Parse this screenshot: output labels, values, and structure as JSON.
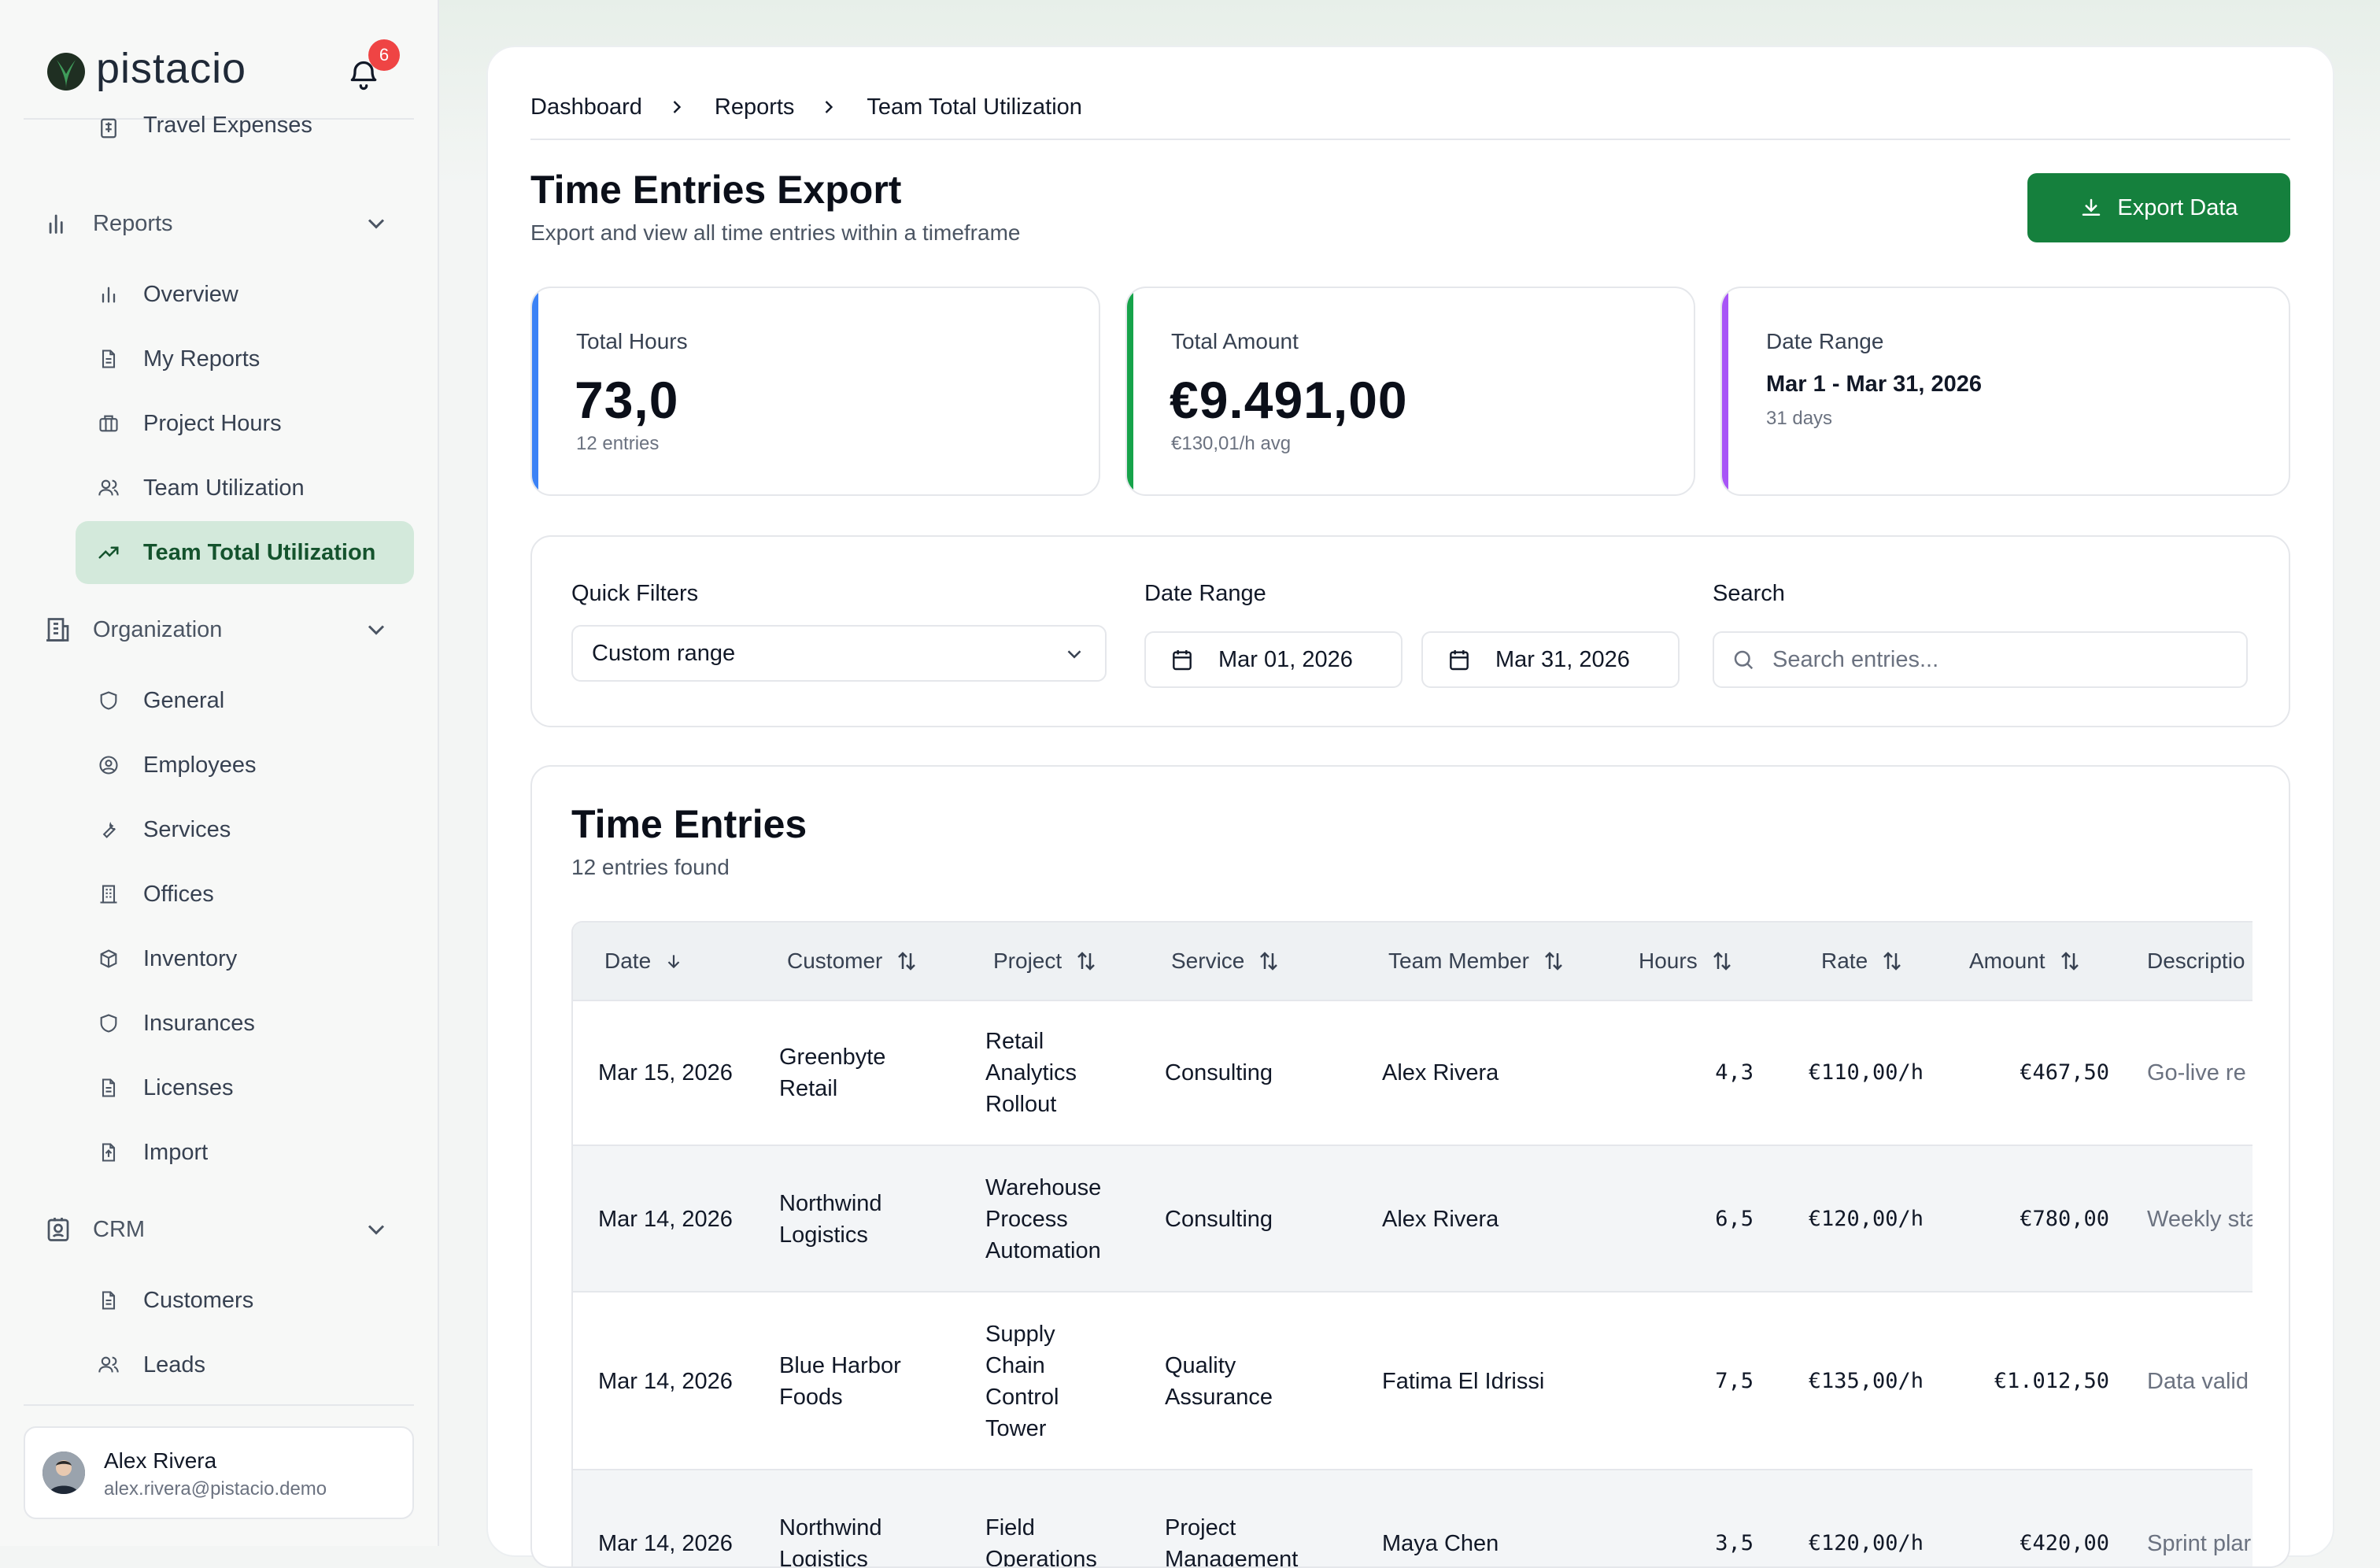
{
  "app": {
    "name": "pistacio",
    "notification_count": "6"
  },
  "sidebar": {
    "partial_item": "Travel Expenses",
    "reports": {
      "label": "Reports",
      "items": [
        "Overview",
        "My Reports",
        "Project Hours",
        "Team Utilization",
        "Team Total Utilization"
      ]
    },
    "organization": {
      "label": "Organization",
      "items": [
        "General",
        "Employees",
        "Services",
        "Offices",
        "Inventory",
        "Insurances",
        "Licenses",
        "Import"
      ]
    },
    "crm": {
      "label": "CRM",
      "items": [
        "Customers",
        "Leads"
      ]
    },
    "user": {
      "name": "Alex Rivera",
      "email": "alex.rivera@pistacio.demo"
    }
  },
  "breadcrumb": [
    "Dashboard",
    "Reports",
    "Team Total Utilization"
  ],
  "page": {
    "title": "Time Entries Export",
    "subtitle": "Export and view all time entries within a timeframe",
    "export_label": "Export Data"
  },
  "stats": {
    "hours": {
      "label": "Total Hours",
      "value": "73,0",
      "sub": "12 entries",
      "accent": "#3b82f6"
    },
    "amount": {
      "label": "Total Amount",
      "value": "€9.491,00",
      "sub": "€130,01/h avg",
      "accent": "#16a34a"
    },
    "range": {
      "label": "Date Range",
      "value": "Mar 1 - Mar 31, 2026",
      "sub": "31 days",
      "accent": "#a855f7"
    }
  },
  "filters": {
    "quick_label": "Quick Filters",
    "quick_value": "Custom range",
    "date_label": "Date Range",
    "date_from": "Mar 01, 2026",
    "date_to": "Mar 31, 2026",
    "search_label": "Search",
    "search_placeholder": "Search entries..."
  },
  "entries": {
    "title": "Time Entries",
    "count_text": "12 entries found",
    "columns": [
      "Date",
      "Customer",
      "Project",
      "Service",
      "Team Member",
      "Hours",
      "Rate",
      "Amount",
      "Descriptio"
    ],
    "rows": [
      {
        "date": "Mar 15, 2026",
        "customer": [
          "Greenbyte",
          "Retail"
        ],
        "project": [
          "Retail",
          "Analytics",
          "Rollout"
        ],
        "service": [
          "Consulting"
        ],
        "member": "Alex Rivera",
        "hours": "4,3",
        "rate": "€110,00/h",
        "amount": "€467,50",
        "desc": "Go-live re"
      },
      {
        "date": "Mar 14, 2026",
        "customer": [
          "Northwind",
          "Logistics"
        ],
        "project": [
          "Warehouse",
          "Process",
          "Automation"
        ],
        "service": [
          "Consulting"
        ],
        "member": "Alex Rivera",
        "hours": "6,5",
        "rate": "€120,00/h",
        "amount": "€780,00",
        "desc": "Weekly sta"
      },
      {
        "date": "Mar 14, 2026",
        "customer": [
          "Blue Harbor",
          "Foods"
        ],
        "project": [
          "Supply",
          "Chain",
          "Control",
          "Tower"
        ],
        "service": [
          "Quality",
          "Assurance"
        ],
        "member": "Fatima El Idrissi",
        "hours": "7,5",
        "rate": "€135,00/h",
        "amount": "€1.012,50",
        "desc": "Data valid"
      },
      {
        "date": "Mar 14, 2026",
        "customer": [
          "Northwind",
          "Logistics"
        ],
        "project": [
          "Field",
          "Operations"
        ],
        "service": [
          "Project",
          "Management"
        ],
        "member": "Maya Chen",
        "hours": "3,5",
        "rate": "€120,00/h",
        "amount": "€420,00",
        "desc": "Sprint plar"
      }
    ]
  }
}
